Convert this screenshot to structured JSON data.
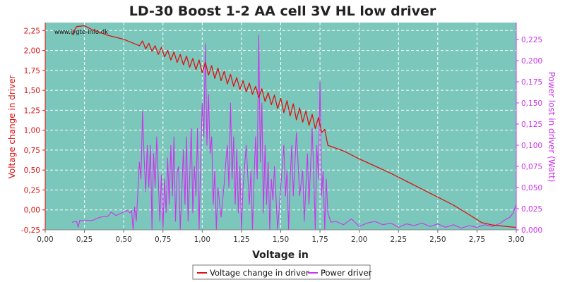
{
  "chart_data": {
    "type": "line",
    "title": "LD-30 Boost 1-2 AA cell 3V HL low driver",
    "watermark": "www.lygte-info.dk",
    "xlabel": "Voltage in",
    "ylabel_left": "Voltage change in driver",
    "ylabel_right": "Power lost in driver (Watt)",
    "xlim": [
      0,
      3
    ],
    "ylim_left": [
      -0.25,
      2.35
    ],
    "ylim_right": [
      0,
      0.245
    ],
    "x_ticks": [
      "0,00",
      "0,25",
      "0,50",
      "0,75",
      "1,00",
      "1,25",
      "1,50",
      "1,75",
      "2,00",
      "2,25",
      "2,50",
      "2,75",
      "3,00"
    ],
    "y_left_ticks": [
      "-0,25",
      "0,00",
      "0,25",
      "0,50",
      "0,75",
      "1,00",
      "1,25",
      "1,50",
      "1,75",
      "2,00",
      "2,25"
    ],
    "y_right_ticks": [
      "0,000",
      "0,025",
      "0,050",
      "0,075",
      "0,100",
      "0,125",
      "0,150",
      "0,175",
      "0,200",
      "0,225"
    ],
    "grid": true,
    "legend_position": "bottom",
    "colors": {
      "plot_bg": "#7cc7bb",
      "grid": "#ffffff",
      "voltage": "#dd1111",
      "power": "#cc33ee",
      "left_axis": "#dd1111",
      "right_axis": "#cc33ee"
    },
    "series": [
      {
        "name": "Voltage change in driver",
        "axis": "left",
        "points": [
          [
            0.17,
            2.2
          ],
          [
            0.2,
            2.3
          ],
          [
            0.25,
            2.31
          ],
          [
            0.3,
            2.26
          ],
          [
            0.4,
            2.19
          ],
          [
            0.5,
            2.14
          ],
          [
            0.55,
            2.1
          ],
          [
            0.6,
            2.06
          ],
          [
            0.62,
            2.12
          ],
          [
            0.64,
            2.02
          ],
          [
            0.66,
            2.09
          ],
          [
            0.68,
            1.99
          ],
          [
            0.7,
            2.06
          ],
          [
            0.72,
            1.95
          ],
          [
            0.74,
            2.04
          ],
          [
            0.76,
            1.92
          ],
          [
            0.78,
            2.0
          ],
          [
            0.8,
            1.88
          ],
          [
            0.82,
            1.98
          ],
          [
            0.84,
            1.85
          ],
          [
            0.86,
            1.95
          ],
          [
            0.88,
            1.82
          ],
          [
            0.9,
            1.93
          ],
          [
            0.92,
            1.79
          ],
          [
            0.94,
            1.9
          ],
          [
            0.96,
            1.76
          ],
          [
            0.98,
            1.88
          ],
          [
            1.0,
            1.72
          ],
          [
            1.02,
            1.85
          ],
          [
            1.04,
            1.69
          ],
          [
            1.06,
            1.81
          ],
          [
            1.08,
            1.65
          ],
          [
            1.1,
            1.78
          ],
          [
            1.12,
            1.62
          ],
          [
            1.14,
            1.74
          ],
          [
            1.16,
            1.58
          ],
          [
            1.18,
            1.7
          ],
          [
            1.2,
            1.55
          ],
          [
            1.22,
            1.66
          ],
          [
            1.24,
            1.51
          ],
          [
            1.26,
            1.62
          ],
          [
            1.28,
            1.48
          ],
          [
            1.3,
            1.59
          ],
          [
            1.32,
            1.45
          ],
          [
            1.34,
            1.55
          ],
          [
            1.36,
            1.41
          ],
          [
            1.38,
            1.52
          ],
          [
            1.4,
            1.36
          ],
          [
            1.42,
            1.47
          ],
          [
            1.44,
            1.32
          ],
          [
            1.46,
            1.44
          ],
          [
            1.48,
            1.27
          ],
          [
            1.5,
            1.4
          ],
          [
            1.52,
            1.22
          ],
          [
            1.54,
            1.37
          ],
          [
            1.56,
            1.18
          ],
          [
            1.58,
            1.33
          ],
          [
            1.6,
            1.13
          ],
          [
            1.62,
            1.28
          ],
          [
            1.64,
            1.1
          ],
          [
            1.66,
            1.24
          ],
          [
            1.68,
            1.06
          ],
          [
            1.7,
            1.2
          ],
          [
            1.72,
            1.02
          ],
          [
            1.74,
            1.16
          ],
          [
            1.76,
            0.97
          ],
          [
            1.78,
            1.01
          ],
          [
            1.8,
            0.81
          ],
          [
            1.9,
            0.74
          ],
          [
            2.0,
            0.64
          ],
          [
            2.1,
            0.55
          ],
          [
            2.2,
            0.46
          ],
          [
            2.3,
            0.36
          ],
          [
            2.4,
            0.26
          ],
          [
            2.5,
            0.16
          ],
          [
            2.6,
            0.06
          ],
          [
            2.7,
            -0.06
          ],
          [
            2.78,
            -0.16
          ],
          [
            2.85,
            -0.19
          ],
          [
            2.95,
            -0.21
          ],
          [
            3.0,
            -0.22
          ]
        ]
      },
      {
        "name": "Power driver",
        "axis": "right",
        "points": [
          [
            0.17,
            0.009
          ],
          [
            0.2,
            0.01
          ],
          [
            0.21,
            0.003
          ],
          [
            0.22,
            0.011
          ],
          [
            0.3,
            0.011
          ],
          [
            0.35,
            0.015
          ],
          [
            0.4,
            0.016
          ],
          [
            0.42,
            0.021
          ],
          [
            0.45,
            0.017
          ],
          [
            0.5,
            0.021
          ],
          [
            0.52,
            0.023
          ],
          [
            0.54,
            0.02
          ],
          [
            0.55,
            0.023
          ],
          [
            0.56,
            0.0
          ],
          [
            0.57,
            0.027
          ],
          [
            0.58,
            0.01
          ],
          [
            0.6,
            0.08
          ],
          [
            0.61,
            0.06
          ],
          [
            0.62,
            0.14
          ],
          [
            0.63,
            0.085
          ],
          [
            0.64,
            0.045
          ],
          [
            0.65,
            0.1
          ],
          [
            0.66,
            0.05
          ],
          [
            0.67,
            0.1
          ],
          [
            0.68,
            0.0
          ],
          [
            0.69,
            0.09
          ],
          [
            0.7,
            0.05
          ],
          [
            0.71,
            0.11
          ],
          [
            0.72,
            0.06
          ],
          [
            0.73,
            0.01
          ],
          [
            0.74,
            0.065
          ],
          [
            0.75,
            0.002
          ],
          [
            0.76,
            0.06
          ],
          [
            0.77,
            0.02
          ],
          [
            0.78,
            0.085
          ],
          [
            0.79,
            0.03
          ],
          [
            0.8,
            0.1
          ],
          [
            0.81,
            0.04
          ],
          [
            0.82,
            0.11
          ],
          [
            0.83,
            0.01
          ],
          [
            0.84,
            0.068
          ],
          [
            0.85,
            0.075
          ],
          [
            0.86,
            0.0
          ],
          [
            0.87,
            0.045
          ],
          [
            0.88,
            0.095
          ],
          [
            0.89,
            0.03
          ],
          [
            0.9,
            0.11
          ],
          [
            0.91,
            0.01
          ],
          [
            0.92,
            0.06
          ],
          [
            0.93,
            0.12
          ],
          [
            0.94,
            0.02
          ],
          [
            0.95,
            0.075
          ],
          [
            0.96,
            0.04
          ],
          [
            0.97,
            0.12
          ],
          [
            0.98,
            0.0
          ],
          [
            0.99,
            0.08
          ],
          [
            1.0,
            0.15
          ],
          [
            1.01,
            0.11
          ],
          [
            1.02,
            0.22
          ],
          [
            1.03,
            0.1
          ],
          [
            1.04,
            0.16
          ],
          [
            1.05,
            0.09
          ],
          [
            1.06,
            0.11
          ],
          [
            1.07,
            0.03
          ],
          [
            1.08,
            0.07
          ],
          [
            1.09,
            0.0
          ],
          [
            1.1,
            0.05
          ],
          [
            1.12,
            0.015
          ],
          [
            1.14,
            0.055
          ],
          [
            1.15,
            0.08
          ],
          [
            1.16,
            0.1
          ],
          [
            1.17,
            0.05
          ],
          [
            1.18,
            0.15
          ],
          [
            1.19,
            0.06
          ],
          [
            1.2,
            0.11
          ],
          [
            1.21,
            0.03
          ],
          [
            1.22,
            0.095
          ],
          [
            1.23,
            0.02
          ],
          [
            1.24,
            0.075
          ],
          [
            1.25,
            0.0
          ],
          [
            1.26,
            0.05
          ],
          [
            1.28,
            0.1
          ],
          [
            1.3,
            0.03
          ],
          [
            1.31,
            0.07
          ],
          [
            1.32,
            0.0
          ],
          [
            1.33,
            0.06
          ],
          [
            1.34,
            0.11
          ],
          [
            1.35,
            0.06
          ],
          [
            1.36,
            0.23
          ],
          [
            1.37,
            0.08
          ],
          [
            1.38,
            0.15
          ],
          [
            1.39,
            0.02
          ],
          [
            1.4,
            0.1
          ],
          [
            1.41,
            0.03
          ],
          [
            1.42,
            0.08
          ],
          [
            1.43,
            0.0
          ],
          [
            1.44,
            0.06
          ],
          [
            1.45,
            0.035
          ],
          [
            1.46,
            0.075
          ],
          [
            1.48,
            0.0
          ],
          [
            1.5,
            0.05
          ],
          [
            1.52,
            0.1
          ],
          [
            1.53,
            0.04
          ],
          [
            1.54,
            0.07
          ],
          [
            1.55,
            0.0
          ],
          [
            1.56,
            0.06
          ],
          [
            1.57,
            0.1
          ],
          [
            1.58,
            0.04
          ],
          [
            1.6,
            0.115
          ],
          [
            1.61,
            0.08
          ],
          [
            1.62,
            0.04
          ],
          [
            1.64,
            0.07
          ],
          [
            1.65,
            0.01
          ],
          [
            1.66,
            0.05
          ],
          [
            1.67,
            0.09
          ],
          [
            1.68,
            0.03
          ],
          [
            1.7,
            0.12
          ],
          [
            1.71,
            0.065
          ],
          [
            1.72,
            0.0
          ],
          [
            1.73,
            0.1
          ],
          [
            1.74,
            0.06
          ],
          [
            1.75,
            0.175
          ],
          [
            1.76,
            0.04
          ],
          [
            1.77,
            0.07
          ],
          [
            1.78,
            0.0
          ],
          [
            1.79,
            0.06
          ],
          [
            1.8,
            0.02
          ],
          [
            1.82,
            0.009
          ],
          [
            1.85,
            0.01
          ],
          [
            1.9,
            0.006
          ],
          [
            1.95,
            0.013
          ],
          [
            2.0,
            0.004
          ],
          [
            2.05,
            0.008
          ],
          [
            2.1,
            0.01
          ],
          [
            2.15,
            0.006
          ],
          [
            2.2,
            0.008
          ],
          [
            2.25,
            0.003
          ],
          [
            2.3,
            0.007
          ],
          [
            2.35,
            0.005
          ],
          [
            2.4,
            0.008
          ],
          [
            2.45,
            0.004
          ],
          [
            2.5,
            0.007
          ],
          [
            2.55,
            0.003
          ],
          [
            2.6,
            0.006
          ],
          [
            2.65,
            0.002
          ],
          [
            2.7,
            0.005
          ],
          [
            2.75,
            0.003
          ],
          [
            2.8,
            0.006
          ],
          [
            2.85,
            0.004
          ],
          [
            2.9,
            0.008
          ],
          [
            2.93,
            0.012
          ],
          [
            2.96,
            0.015
          ],
          [
            2.98,
            0.02
          ],
          [
            3.0,
            0.03
          ]
        ]
      }
    ]
  }
}
